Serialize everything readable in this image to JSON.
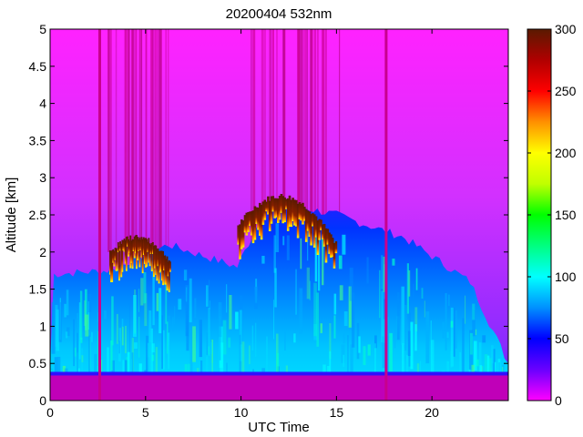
{
  "chart_data": {
    "type": "heatmap",
    "title": "20200404 532nm",
    "xlabel": "UTC Time",
    "ylabel": "Altitude [km]",
    "xlim": [
      0,
      24
    ],
    "ylim": [
      0,
      5
    ],
    "x_ticks": [
      0,
      5,
      10,
      15,
      20
    ],
    "x_tick_labels": [
      "0",
      "5",
      "10",
      "15",
      "20"
    ],
    "y_ticks": [
      0,
      0.5,
      1,
      1.5,
      2,
      2.5,
      3,
      3.5,
      4,
      4.5,
      5
    ],
    "y_tick_labels": [
      "0",
      "0.5",
      "1",
      "1.5",
      "2",
      "2.5",
      "3",
      "3.5",
      "4",
      "4.5",
      "5"
    ],
    "colorbar": {
      "range": [
        0,
        300
      ],
      "ticks": [
        0,
        50,
        100,
        150,
        200,
        250,
        300
      ],
      "tick_labels": [
        "0",
        "50",
        "100",
        "150",
        "200",
        "250",
        "300"
      ],
      "colormap": [
        "#ff00ff",
        "#6a00ff",
        "#0000ff",
        "#0090ff",
        "#00ffff",
        "#00ff80",
        "#00ff00",
        "#c0ff00",
        "#ffff00",
        "#ff9000",
        "#ff0000",
        "#b00000",
        "#5a1a00"
      ]
    },
    "data_gaps_utc": [
      2.6,
      17.6
    ],
    "surface_layer_km": [
      0,
      0.35
    ],
    "aerosol_layer_top_km": [
      [
        0.05,
        1.7
      ],
      [
        3.0,
        1.75
      ],
      [
        6.2,
        2.1
      ],
      [
        9.8,
        1.8
      ],
      [
        11.5,
        2.7
      ],
      [
        15.0,
        2.5
      ],
      [
        18.5,
        2.2
      ],
      [
        22.0,
        1.6
      ],
      [
        24.0,
        0.5
      ]
    ],
    "cloud_segments": [
      {
        "utc_start": 3.1,
        "utc_end": 6.3,
        "altitude_km": [
          1.7,
          2.2
        ]
      },
      {
        "utc_start": 9.8,
        "utc_end": 15.0,
        "altitude_km": [
          1.8,
          2.75
        ]
      }
    ]
  }
}
